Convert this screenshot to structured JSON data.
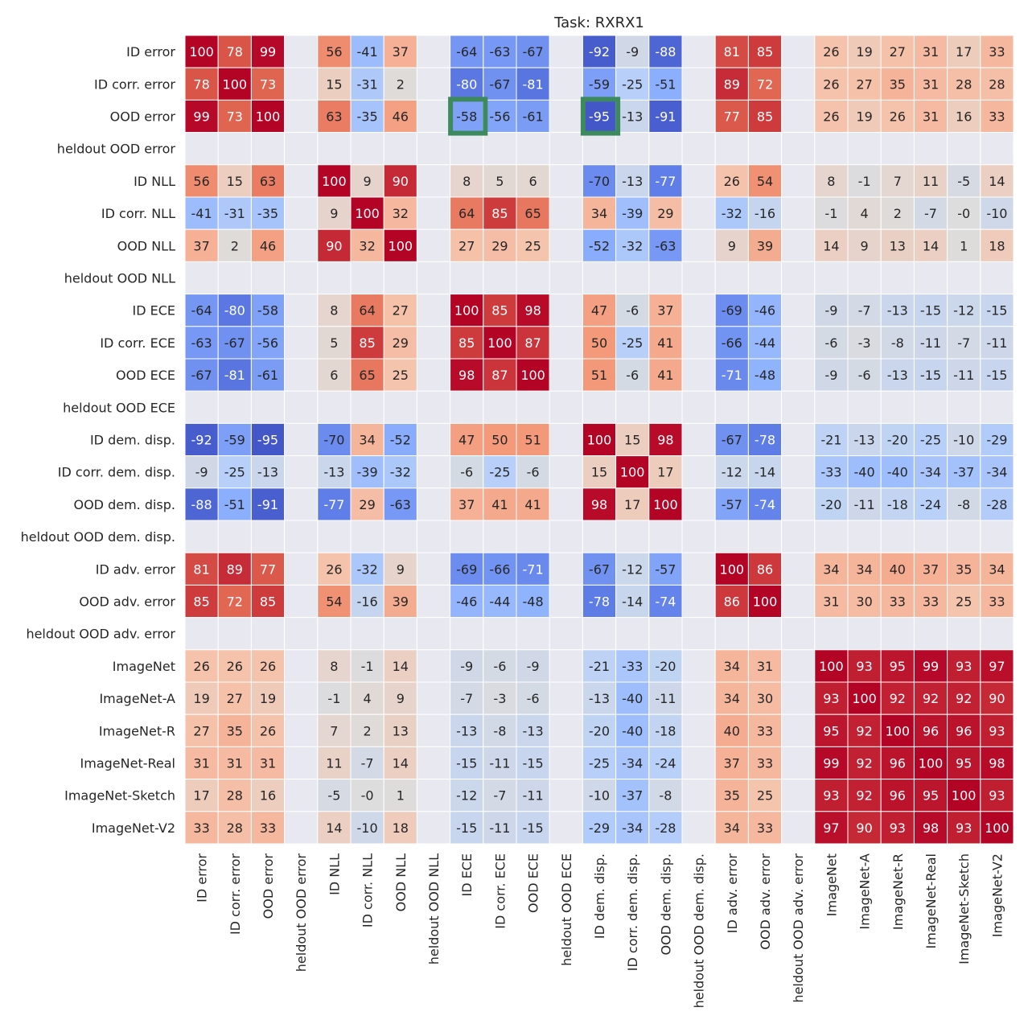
{
  "chart_data": {
    "type": "heatmap",
    "title": "Task: RXRX1",
    "colormap": "coolwarm",
    "value_range": [
      -100,
      100
    ],
    "missing_color": "#e8e8f0",
    "labels": [
      "ID error",
      "ID corr. error",
      "OOD error",
      "heldout OOD error",
      "ID NLL",
      "ID corr. NLL",
      "OOD NLL",
      "heldout OOD NLL",
      "ID ECE",
      "ID corr. ECE",
      "OOD ECE",
      "heldout OOD ECE",
      "ID dem. disp.",
      "ID corr. dem. disp.",
      "OOD dem. disp.",
      "heldout OOD dem. disp.",
      "ID adv. error",
      "OOD adv. error",
      "heldout OOD adv. error",
      "ImageNet",
      "ImageNet-A",
      "ImageNet-R",
      "ImageNet-Real",
      "ImageNet-Sketch",
      "ImageNet-V2"
    ],
    "matrix_cells": [
      [
        "100",
        "78",
        "99",
        "",
        "56",
        "-41",
        "37",
        "",
        "-64",
        "-63",
        "-67",
        "",
        "-92",
        "-9",
        "-88",
        "",
        "81",
        "85",
        "",
        "26",
        "19",
        "27",
        "31",
        "17",
        "33"
      ],
      [
        "78",
        "100",
        "73",
        "",
        "15",
        "-31",
        "2",
        "",
        "-80",
        "-67",
        "-81",
        "",
        "-59",
        "-25",
        "-51",
        "",
        "89",
        "72",
        "",
        "26",
        "27",
        "35",
        "31",
        "28",
        "28"
      ],
      [
        "99",
        "73",
        "100",
        "",
        "63",
        "-35",
        "46",
        "",
        "-58",
        "-56",
        "-61",
        "",
        "-95",
        "-13",
        "-91",
        "",
        "77",
        "85",
        "",
        "26",
        "19",
        "26",
        "31",
        "16",
        "33"
      ],
      [
        "",
        "",
        "",
        "",
        "",
        "",
        "",
        "",
        "",
        "",
        "",
        "",
        "",
        "",
        "",
        "",
        "",
        "",
        "",
        "",
        "",
        "",
        "",
        "",
        ""
      ],
      [
        "56",
        "15",
        "63",
        "",
        "100",
        "9",
        "90",
        "",
        "8",
        "5",
        "6",
        "",
        "-70",
        "-13",
        "-77",
        "",
        "26",
        "54",
        "",
        "8",
        "-1",
        "7",
        "11",
        "-5",
        "14"
      ],
      [
        "-41",
        "-31",
        "-35",
        "",
        "9",
        "100",
        "32",
        "",
        "64",
        "85",
        "65",
        "",
        "34",
        "-39",
        "29",
        "",
        "-32",
        "-16",
        "",
        "-1",
        "4",
        "2",
        "-7",
        "-0",
        "-10"
      ],
      [
        "37",
        "2",
        "46",
        "",
        "90",
        "32",
        "100",
        "",
        "27",
        "29",
        "25",
        "",
        "-52",
        "-32",
        "-63",
        "",
        "9",
        "39",
        "",
        "14",
        "9",
        "13",
        "14",
        "1",
        "18"
      ],
      [
        "",
        "",
        "",
        "",
        "",
        "",
        "",
        "",
        "",
        "",
        "",
        "",
        "",
        "",
        "",
        "",
        "",
        "",
        "",
        "",
        "",
        "",
        "",
        "",
        ""
      ],
      [
        "-64",
        "-80",
        "-58",
        "",
        "8",
        "64",
        "27",
        "",
        "100",
        "85",
        "98",
        "",
        "47",
        "-6",
        "37",
        "",
        "-69",
        "-46",
        "",
        "-9",
        "-7",
        "-13",
        "-15",
        "-12",
        "-15"
      ],
      [
        "-63",
        "-67",
        "-56",
        "",
        "5",
        "85",
        "29",
        "",
        "85",
        "100",
        "87",
        "",
        "50",
        "-25",
        "41",
        "",
        "-66",
        "-44",
        "",
        "-6",
        "-3",
        "-8",
        "-11",
        "-7",
        "-11"
      ],
      [
        "-67",
        "-81",
        "-61",
        "",
        "6",
        "65",
        "25",
        "",
        "98",
        "87",
        "100",
        "",
        "51",
        "-6",
        "41",
        "",
        "-71",
        "-48",
        "",
        "-9",
        "-6",
        "-13",
        "-15",
        "-11",
        "-15"
      ],
      [
        "",
        "",
        "",
        "",
        "",
        "",
        "",
        "",
        "",
        "",
        "",
        "",
        "",
        "",
        "",
        "",
        "",
        "",
        "",
        "",
        "",
        "",
        "",
        "",
        ""
      ],
      [
        "-92",
        "-59",
        "-95",
        "",
        "-70",
        "34",
        "-52",
        "",
        "47",
        "50",
        "51",
        "",
        "100",
        "15",
        "98",
        "",
        "-67",
        "-78",
        "",
        "-21",
        "-13",
        "-20",
        "-25",
        "-10",
        "-29"
      ],
      [
        "-9",
        "-25",
        "-13",
        "",
        "-13",
        "-39",
        "-32",
        "",
        "-6",
        "-25",
        "-6",
        "",
        "15",
        "100",
        "17",
        "",
        "-12",
        "-14",
        "",
        "-33",
        "-40",
        "-40",
        "-34",
        "-37",
        "-34"
      ],
      [
        "-88",
        "-51",
        "-91",
        "",
        "-77",
        "29",
        "-63",
        "",
        "37",
        "41",
        "41",
        "",
        "98",
        "17",
        "100",
        "",
        "-57",
        "-74",
        "",
        "-20",
        "-11",
        "-18",
        "-24",
        "-8",
        "-28"
      ],
      [
        "",
        "",
        "",
        "",
        "",
        "",
        "",
        "",
        "",
        "",
        "",
        "",
        "",
        "",
        "",
        "",
        "",
        "",
        "",
        "",
        "",
        "",
        "",
        "",
        ""
      ],
      [
        "81",
        "89",
        "77",
        "",
        "26",
        "-32",
        "9",
        "",
        "-69",
        "-66",
        "-71",
        "",
        "-67",
        "-12",
        "-57",
        "",
        "100",
        "86",
        "",
        "34",
        "34",
        "40",
        "37",
        "35",
        "34"
      ],
      [
        "85",
        "72",
        "85",
        "",
        "54",
        "-16",
        "39",
        "",
        "-46",
        "-44",
        "-48",
        "",
        "-78",
        "-14",
        "-74",
        "",
        "86",
        "100",
        "",
        "31",
        "30",
        "33",
        "33",
        "25",
        "33"
      ],
      [
        "",
        "",
        "",
        "",
        "",
        "",
        "",
        "",
        "",
        "",
        "",
        "",
        "",
        "",
        "",
        "",
        "",
        "",
        "",
        "",
        "",
        "",
        "",
        "",
        ""
      ],
      [
        "26",
        "26",
        "26",
        "",
        "8",
        "-1",
        "14",
        "",
        "-9",
        "-6",
        "-9",
        "",
        "-21",
        "-33",
        "-20",
        "",
        "34",
        "31",
        "",
        "100",
        "93",
        "95",
        "99",
        "93",
        "97"
      ],
      [
        "19",
        "27",
        "19",
        "",
        "-1",
        "4",
        "9",
        "",
        "-7",
        "-3",
        "-6",
        "",
        "-13",
        "-40",
        "-11",
        "",
        "34",
        "30",
        "",
        "93",
        "100",
        "92",
        "92",
        "92",
        "90"
      ],
      [
        "27",
        "35",
        "26",
        "",
        "7",
        "2",
        "13",
        "",
        "-13",
        "-8",
        "-13",
        "",
        "-20",
        "-40",
        "-18",
        "",
        "40",
        "33",
        "",
        "95",
        "92",
        "100",
        "96",
        "96",
        "93"
      ],
      [
        "31",
        "31",
        "31",
        "",
        "11",
        "-7",
        "14",
        "",
        "-15",
        "-11",
        "-15",
        "",
        "-25",
        "-34",
        "-24",
        "",
        "37",
        "33",
        "",
        "99",
        "92",
        "96",
        "100",
        "95",
        "98"
      ],
      [
        "17",
        "28",
        "16",
        "",
        "-5",
        "-0",
        "1",
        "",
        "-12",
        "-7",
        "-11",
        "",
        "-10",
        "-37",
        "-8",
        "",
        "35",
        "25",
        "",
        "93",
        "92",
        "96",
        "95",
        "100",
        "93"
      ],
      [
        "33",
        "28",
        "33",
        "",
        "14",
        "-10",
        "18",
        "",
        "-15",
        "-11",
        "-15",
        "",
        "-29",
        "-34",
        "-28",
        "",
        "34",
        "33",
        "",
        "97",
        "90",
        "93",
        "98",
        "93",
        "100"
      ]
    ],
    "highlighted_cells": [
      {
        "row": "OOD error",
        "col": "ID ECE",
        "value": "-58"
      },
      {
        "row": "OOD error",
        "col": "ID dem. disp.",
        "value": "-95"
      }
    ],
    "highlight_color": "#3d8a5f"
  }
}
